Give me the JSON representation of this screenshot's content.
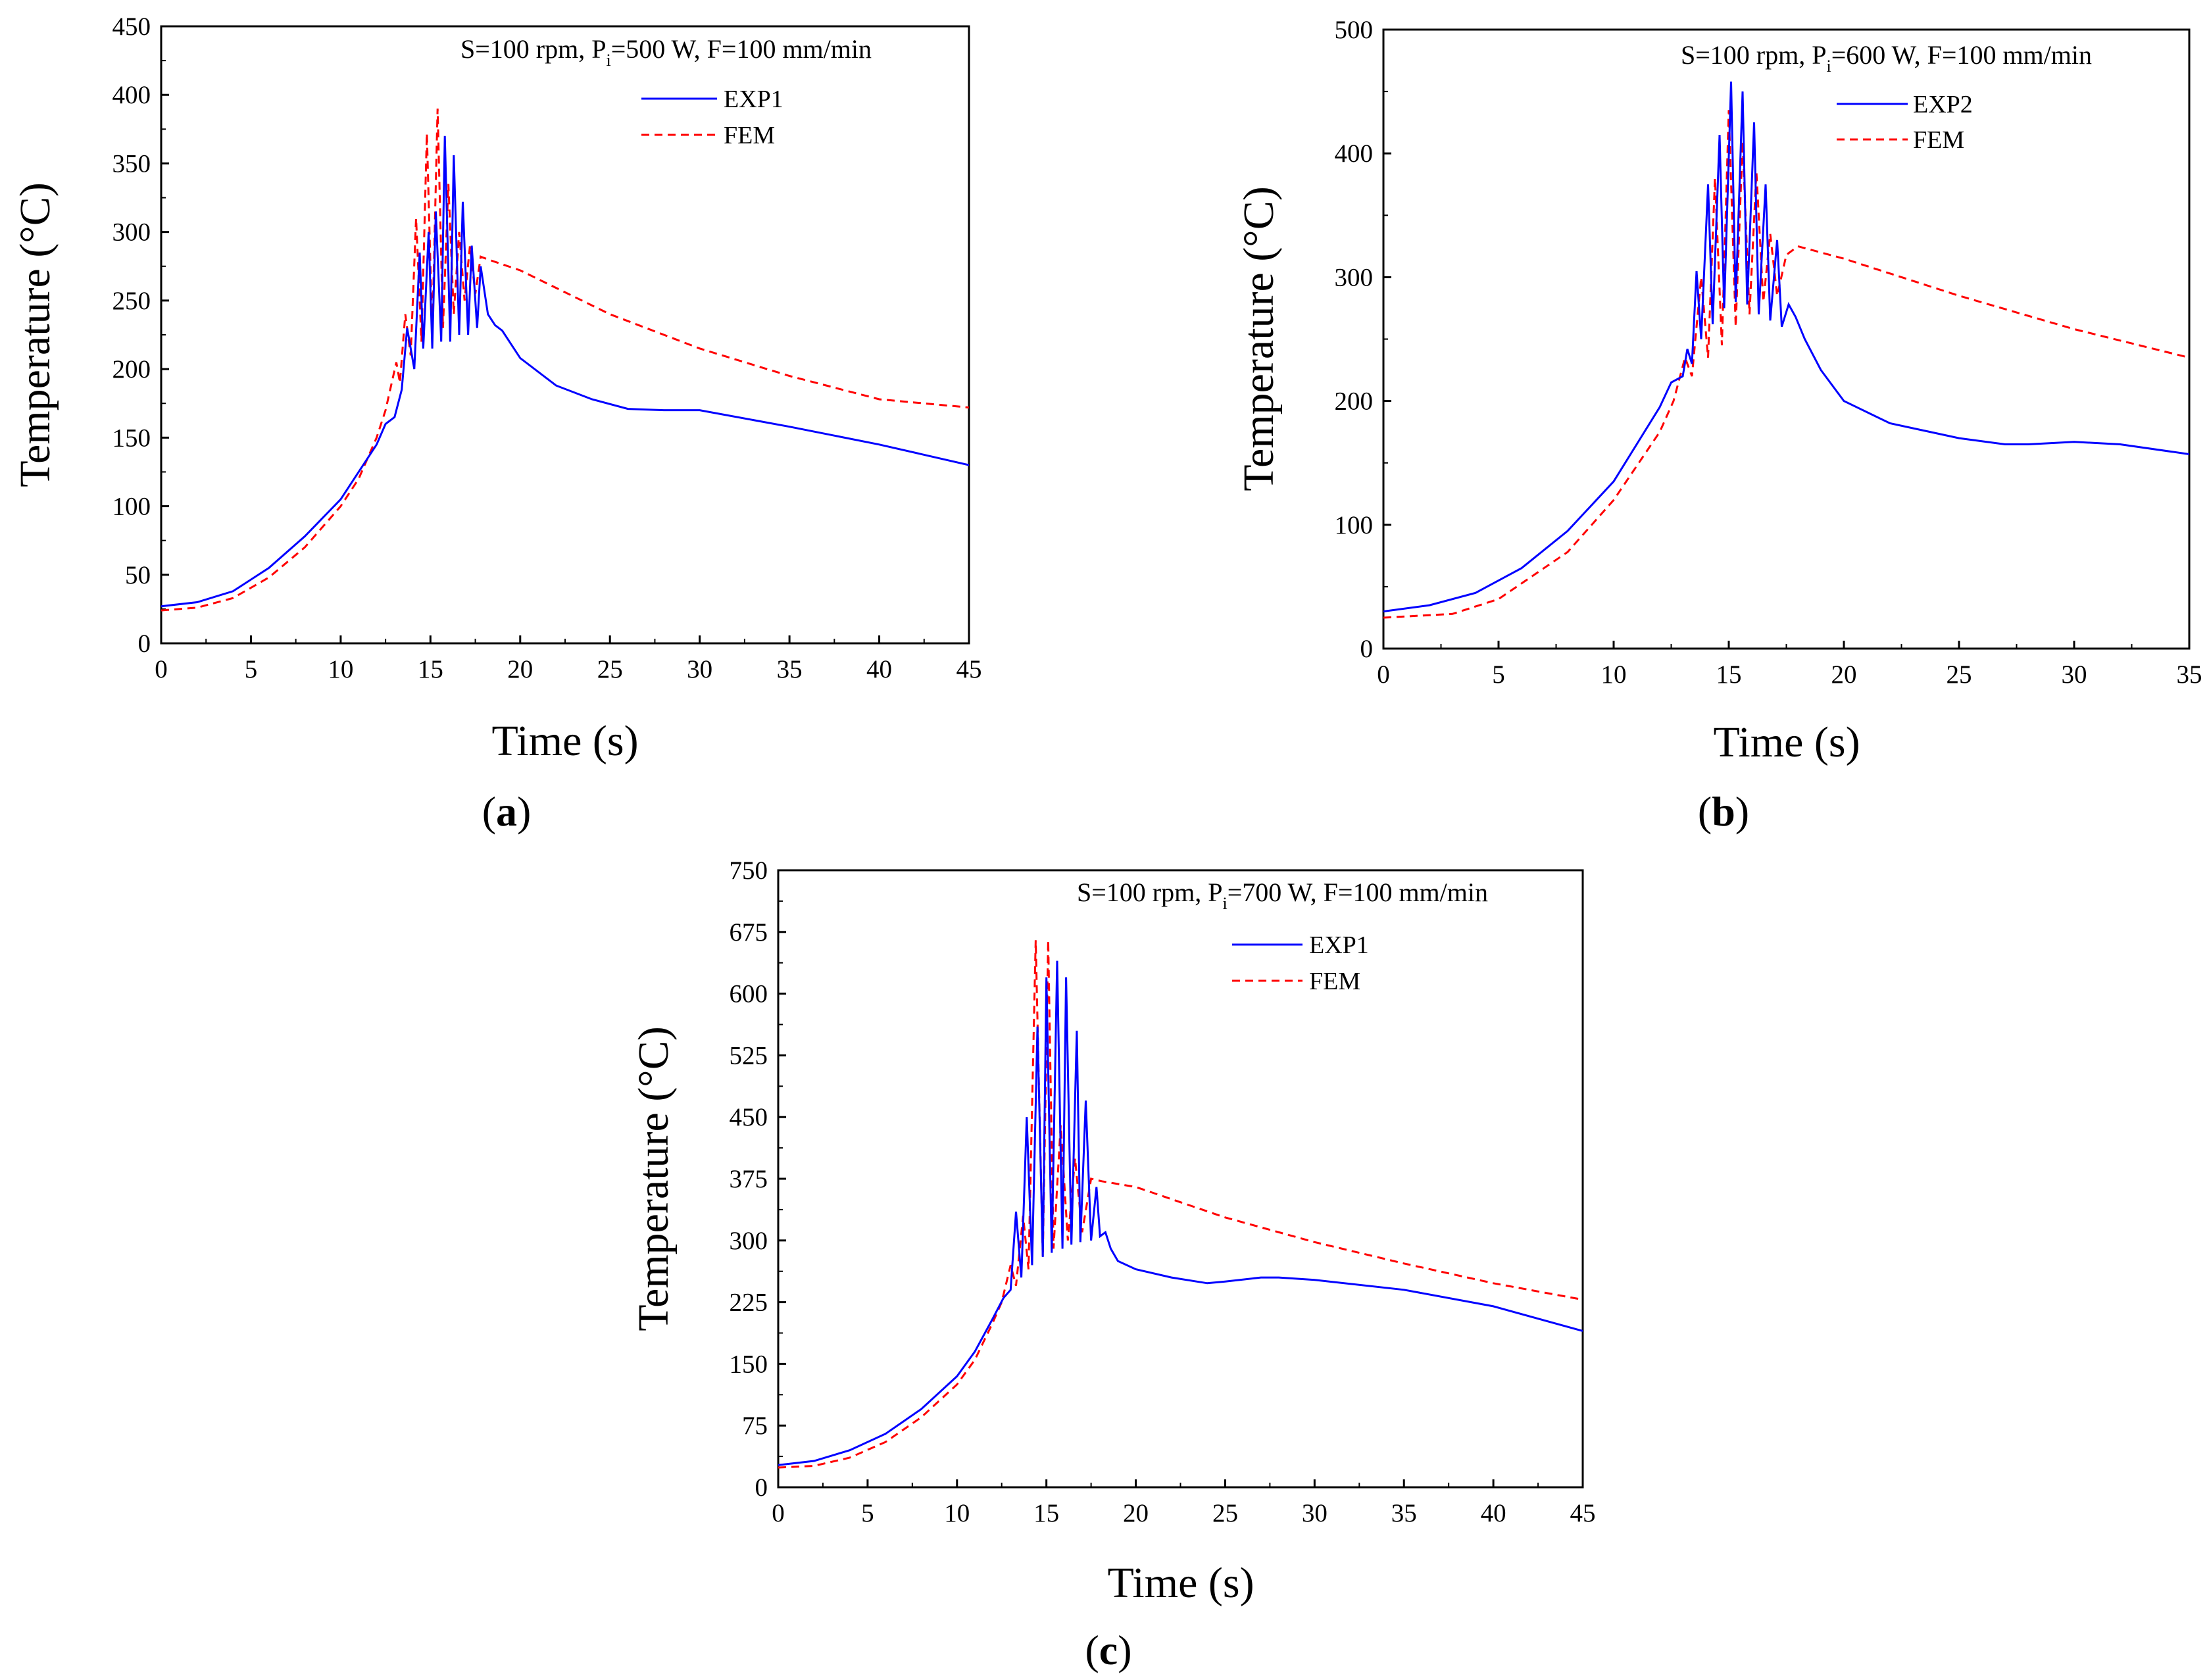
{
  "chart_data": [
    {
      "id": "a",
      "type": "line",
      "panel_label": "a",
      "condition": {
        "prefix": "S=100 rpm, P",
        "sub": "i",
        "suffix": "=500 W, F=100 mm/min"
      },
      "xlabel": "Time (s)",
      "ylabel": "Temperature (°C)",
      "xlim": [
        0,
        45
      ],
      "ylim": [
        0,
        450
      ],
      "xticks": [
        0,
        5,
        10,
        15,
        20,
        25,
        30,
        35,
        40,
        45
      ],
      "yticks": [
        0,
        50,
        100,
        150,
        200,
        250,
        300,
        350,
        400,
        450
      ],
      "legend_position": "top-right",
      "series": [
        {
          "name": "EXP1",
          "color": "#0000ff",
          "style": "solid",
          "x": [
            0,
            2,
            4,
            6,
            8,
            10,
            11,
            12,
            12.5,
            13,
            13.4,
            13.7,
            14.1,
            14.4,
            14.6,
            14.9,
            15.1,
            15.3,
            15.6,
            15.8,
            16.1,
            16.3,
            16.6,
            16.8,
            17.1,
            17.3,
            17.6,
            17.8,
            18.2,
            18.6,
            19,
            20,
            22,
            24,
            26,
            28,
            30,
            35,
            40,
            45
          ],
          "y": [
            27,
            30,
            38,
            55,
            78,
            105,
            125,
            145,
            160,
            165,
            185,
            230,
            200,
            285,
            215,
            300,
            215,
            315,
            220,
            370,
            220,
            356,
            225,
            322,
            225,
            290,
            230,
            275,
            240,
            232,
            228,
            208,
            188,
            178,
            171,
            170,
            170,
            158,
            145,
            130
          ]
        },
        {
          "name": "FEM",
          "color": "#ff0000",
          "style": "dashed",
          "x": [
            0,
            2,
            4,
            6,
            8,
            10,
            11,
            12,
            12.5,
            13.1,
            13.3,
            13.6,
            13.9,
            14.2,
            14.5,
            14.8,
            15.1,
            15.4,
            15.7,
            16,
            16.3,
            16.6,
            16.9,
            17.2,
            17.5,
            17.8,
            18.2,
            20,
            25,
            30,
            35,
            40,
            45
          ],
          "y": [
            24,
            26,
            33,
            48,
            70,
            100,
            120,
            150,
            170,
            205,
            190,
            240,
            210,
            310,
            220,
            372,
            225,
            390,
            230,
            335,
            240,
            300,
            250,
            290,
            255,
            282,
            280,
            272,
            240,
            215,
            195,
            178,
            172
          ]
        }
      ]
    },
    {
      "id": "b",
      "type": "line",
      "panel_label": "b",
      "condition": {
        "prefix": "S=100 rpm, P",
        "sub": "i",
        "suffix": "=600 W, F=100 mm/min"
      },
      "xlabel": "Time (s)",
      "ylabel": "Temperature (°C)",
      "xlim": [
        0,
        35
      ],
      "ylim": [
        0,
        500
      ],
      "xticks": [
        0,
        5,
        10,
        15,
        20,
        25,
        30,
        35
      ],
      "yticks": [
        0,
        100,
        200,
        300,
        400,
        500
      ],
      "legend_position": "top-right",
      "series": [
        {
          "name": "EXP2",
          "color": "#0000ff",
          "style": "solid",
          "x": [
            0,
            2,
            4,
            6,
            8,
            10,
            11,
            12,
            12.5,
            13,
            13.2,
            13.4,
            13.6,
            13.8,
            14.1,
            14.3,
            14.6,
            14.8,
            15.1,
            15.3,
            15.6,
            15.8,
            16.1,
            16.3,
            16.6,
            16.8,
            17.1,
            17.3,
            17.6,
            17.9,
            18.3,
            19,
            20,
            22,
            25,
            27,
            28,
            30,
            32,
            35
          ],
          "y": [
            30,
            35,
            45,
            65,
            95,
            135,
            165,
            195,
            215,
            220,
            242,
            230,
            305,
            250,
            375,
            262,
            415,
            275,
            458,
            280,
            450,
            278,
            425,
            270,
            375,
            265,
            330,
            260,
            278,
            268,
            250,
            225,
            200,
            182,
            170,
            165,
            165,
            167,
            165,
            157
          ]
        },
        {
          "name": "FEM",
          "color": "#ff0000",
          "style": "dashed",
          "x": [
            0,
            3,
            5,
            8,
            10,
            12,
            12.6,
            13.1,
            13.4,
            13.8,
            14.1,
            14.4,
            14.7,
            15,
            15.3,
            15.6,
            15.9,
            16.2,
            16.5,
            16.8,
            17.1,
            17.5,
            18,
            20,
            25,
            30,
            35
          ],
          "y": [
            25,
            28,
            40,
            78,
            120,
            175,
            200,
            235,
            220,
            300,
            235,
            380,
            245,
            435,
            260,
            410,
            270,
            385,
            280,
            335,
            285,
            318,
            325,
            315,
            285,
            258,
            235
          ]
        }
      ]
    },
    {
      "id": "c",
      "type": "line",
      "panel_label": "c",
      "condition": {
        "prefix": "S=100 rpm, P",
        "sub": "i",
        "suffix": "=700 W, F=100 mm/min"
      },
      "xlabel": "Time (s)",
      "ylabel": "Temperature (°C)",
      "xlim": [
        0,
        45
      ],
      "ylim": [
        0,
        750
      ],
      "xticks": [
        0,
        5,
        10,
        15,
        20,
        25,
        30,
        35,
        40,
        45
      ],
      "yticks": [
        0,
        75,
        150,
        225,
        300,
        375,
        450,
        525,
        600,
        675,
        750
      ],
      "legend_position": "top-right",
      "series": [
        {
          "name": "EXP1",
          "color": "#0000ff",
          "style": "solid",
          "x": [
            0,
            2,
            4,
            6,
            8,
            10,
            11,
            12,
            12.6,
            13,
            13.3,
            13.6,
            13.9,
            14.2,
            14.5,
            14.8,
            15,
            15.3,
            15.6,
            15.9,
            16.1,
            16.4,
            16.7,
            16.9,
            17.2,
            17.5,
            17.8,
            18,
            18.3,
            18.6,
            19,
            20,
            22,
            24,
            25,
            27,
            28,
            30,
            35,
            40,
            45
          ],
          "y": [
            27,
            32,
            45,
            65,
            95,
            135,
            165,
            205,
            230,
            240,
            335,
            255,
            450,
            270,
            560,
            280,
            620,
            285,
            640,
            290,
            620,
            295,
            555,
            298,
            470,
            300,
            365,
            305,
            310,
            290,
            275,
            265,
            255,
            248,
            250,
            255,
            255,
            252,
            240,
            220,
            190
          ]
        },
        {
          "name": "FEM",
          "color": "#ff0000",
          "style": "dashed",
          "x": [
            0,
            2,
            4,
            6,
            8,
            10,
            11,
            12,
            12.5,
            13,
            13.3,
            13.7,
            14,
            14.4,
            14.8,
            15.1,
            15.4,
            15.8,
            16.2,
            16.6,
            17,
            17.5,
            18.1,
            20,
            25,
            30,
            35,
            40,
            45
          ],
          "y": [
            24,
            26,
            36,
            55,
            85,
            125,
            155,
            200,
            225,
            270,
            245,
            330,
            265,
            665,
            280,
            665,
            290,
            440,
            300,
            400,
            310,
            375,
            372,
            365,
            328,
            298,
            272,
            248,
            228
          ]
        }
      ]
    }
  ]
}
